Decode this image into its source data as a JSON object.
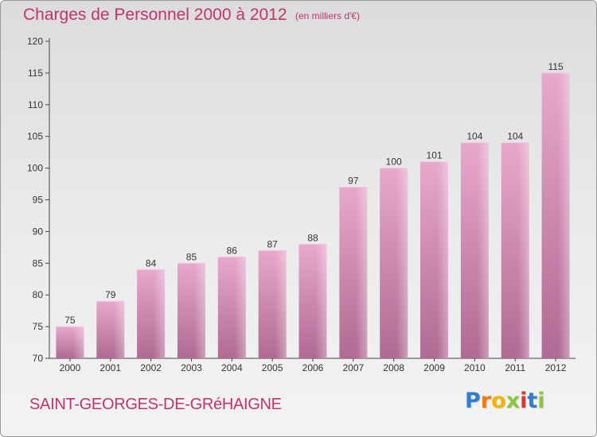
{
  "header": {
    "title": "Charges de Personnel 2000 à 2012",
    "unit": "(en milliers d'€)"
  },
  "footer": {
    "commune": "SAINT-GEORGES-DE-GRéHAIGNE",
    "logo_letters": [
      "P",
      "r",
      "o",
      "x",
      "i",
      "t",
      "i"
    ],
    "logo_colors": [
      "#2e7fd1",
      "#f07a12",
      "#f5b400",
      "#8cc63f",
      "#e8312f",
      "#2e7fd1",
      "#8cc63f"
    ]
  },
  "chart_data": {
    "type": "bar",
    "categories": [
      "2000",
      "2001",
      "2002",
      "2003",
      "2004",
      "2005",
      "2006",
      "2007",
      "2008",
      "2009",
      "2010",
      "2011",
      "2012"
    ],
    "values": [
      75,
      79,
      84,
      85,
      86,
      87,
      88,
      97,
      100,
      101,
      104,
      104,
      115
    ],
    "ylim": [
      70,
      120
    ],
    "yticks": [
      70,
      75,
      80,
      85,
      90,
      95,
      100,
      105,
      110,
      115,
      120
    ],
    "grid": false,
    "bar_color": "#d67fae"
  }
}
